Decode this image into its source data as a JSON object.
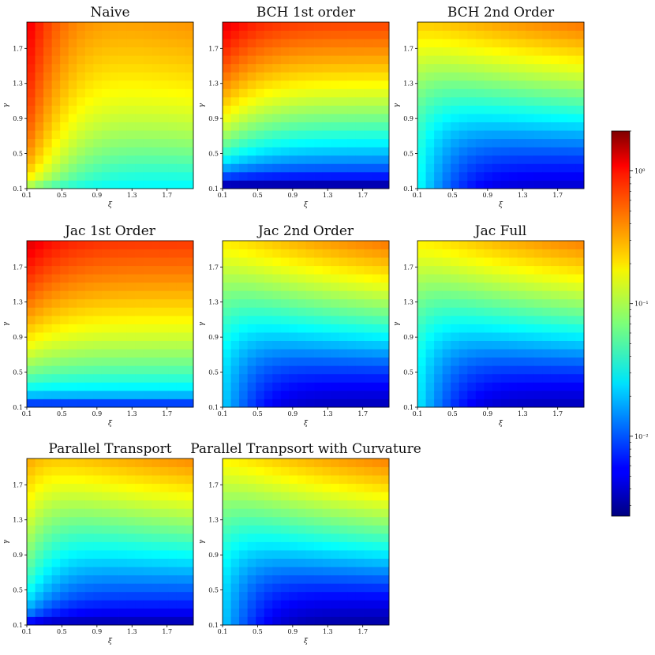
{
  "chart_data": {
    "type": "heatmap",
    "xlabel": "ξ",
    "ylabel": "γ",
    "xticks": [
      "0.1",
      "0.5",
      "0.9",
      "1.3",
      "1.7"
    ],
    "yticks": [
      "0.1",
      "0.5",
      "0.9",
      "1.3",
      "1.7"
    ],
    "xlim": [
      0.1,
      2.0
    ],
    "ylim": [
      0.1,
      2.0
    ],
    "grid_size": 20,
    "colormap": "jet",
    "color_scale": "log",
    "colorbar": {
      "range": [
        0.0025,
        2.0
      ],
      "ticks": [
        {
          "value": 1,
          "label": "10⁰"
        },
        {
          "value": 0.1,
          "label": "10⁻¹"
        },
        {
          "value": 0.01,
          "label": "10⁻²"
        }
      ]
    },
    "panels": [
      {
        "title": "Naive",
        "model": "naive"
      },
      {
        "title": "BCH 1st order",
        "model": "bch1"
      },
      {
        "title": "BCH 2nd Order",
        "model": "bch2"
      },
      {
        "title": "Jac 1st Order",
        "model": "jac1"
      },
      {
        "title": "Jac 2nd Order",
        "model": "jac2"
      },
      {
        "title": "Jac Full",
        "model": "jacfull"
      },
      {
        "title": "Parallel Transport",
        "model": "pt"
      },
      {
        "title": "Parallel Tranpsort with Curvature",
        "model": "ptc"
      }
    ]
  }
}
